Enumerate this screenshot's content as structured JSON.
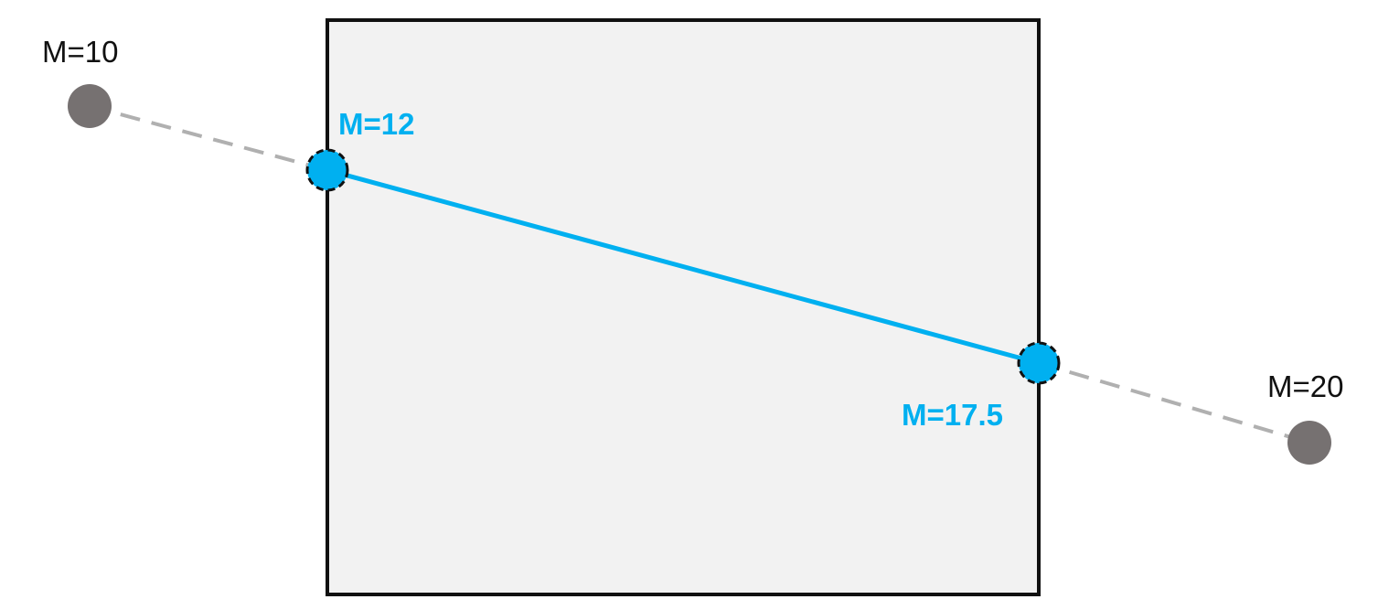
{
  "diagram": {
    "outer_points": [
      {
        "label": "M=10"
      },
      {
        "label": "M=20"
      }
    ],
    "intersection_points": [
      {
        "label": "M=12"
      },
      {
        "label": "M=17.5"
      }
    ]
  },
  "colors": {
    "box_fill": "#f2f2f2",
    "box_stroke": "#111111",
    "outer_point": "#767171",
    "outer_line": "#b0b0b0",
    "intersection_point": "#00b0f0",
    "intersection_line": "#00b0f0",
    "outer_label": "#111111",
    "intersection_label": "#00b0f0"
  }
}
